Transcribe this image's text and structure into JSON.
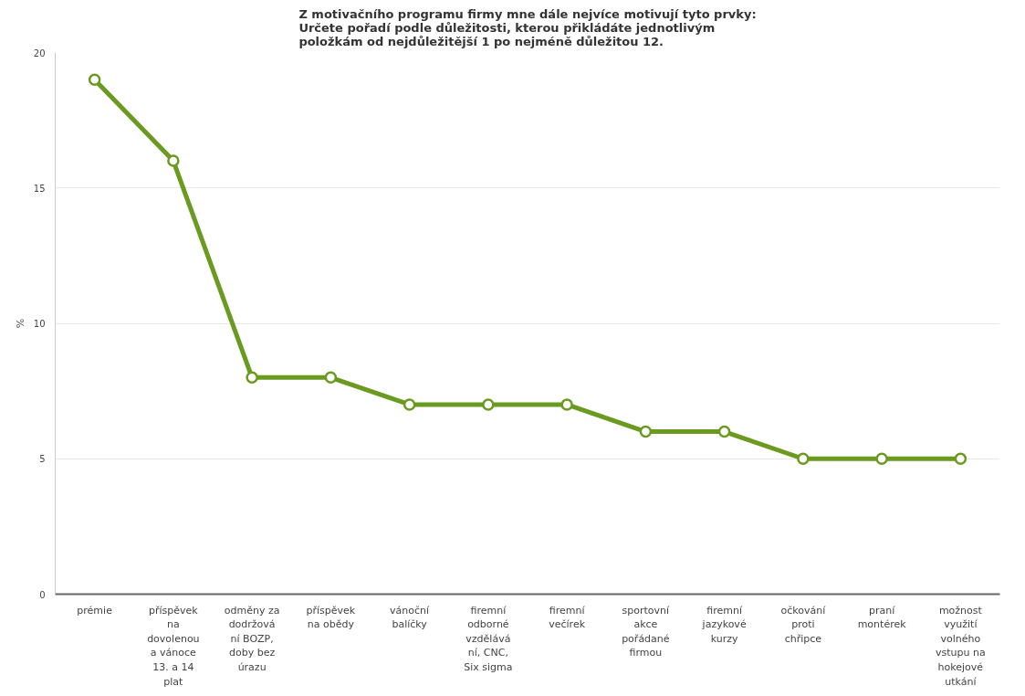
{
  "chart_data": {
    "type": "line",
    "title": "Z motivačního programu firmy mne dále nejvíce motivují tyto prvky:\nUrčete pořadí podle důležitosti, kterou přikládáte jednotlivým\npoložkám od nejdůležitější 1 po nejméně důležitou 12.",
    "ylabel": "%",
    "categories": [
      "prémie",
      "příspěvek na dovolenou a vánoce 13. a 14 plat",
      "odměny za dodržování BOZP, doby bez úrazu",
      "příspěvek na obědy",
      "vánoční balíčky",
      "firemní odborné vzdělávání, CNC, Six sigma",
      "firemní večírek",
      "sportovní akce pořádané firmou",
      "firemní jazykové kurzy",
      "očkování proti chřipce",
      "praní montérek",
      "možnost využití volného vstupu na hokejové utkání"
    ],
    "series": [
      {
        "color": "#6a9a1f",
        "values": [
          19,
          16,
          8,
          8,
          7,
          7,
          7,
          6,
          6,
          5,
          5,
          5
        ]
      }
    ],
    "ylim": [
      0,
      20
    ],
    "yticks": [
      0,
      5,
      10,
      15,
      20
    ],
    "grid": "y",
    "marker": "circle",
    "line_style": "solid"
  }
}
